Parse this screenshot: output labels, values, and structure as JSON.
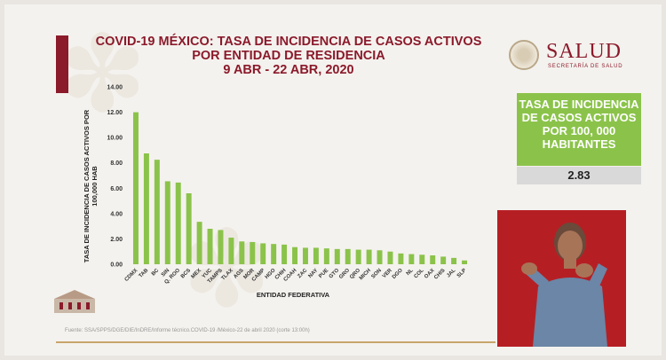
{
  "header": {
    "title_line1": "COVID-19 MÉXICO: TASA DE INCIDENCIA DE CASOS ACTIVOS",
    "title_line2": "POR ENTIDAD DE RESIDENCIA",
    "title_line3": "9 ABR - 22 ABR, 2020"
  },
  "logo": {
    "word": "SALUD",
    "subtitle": "SECRETARÍA DE SALUD"
  },
  "kpi": {
    "label": "TASA DE INCIDENCIA DE CASOS ACTIVOS POR 100, 000 HABITANTES",
    "value": "2.83"
  },
  "source": "Fuente: SSA/SPPS/DGE/DIE/InDRE/Informe técnico.COVID-19 /México-22 de abril 2020 (corte 13:00h)",
  "colors": {
    "bar": "#8bc34a",
    "title": "#8b1a2b",
    "kpi_bg": "#8bc34a"
  },
  "chart_data": {
    "type": "bar",
    "xlabel": "ENTIDAD FEDERATIVA",
    "ylabel": "TASA DE INCIDENCIA DE CASOS ACTIVOS POR 100,000 HAB",
    "ylim": [
      0,
      14
    ],
    "yticks": [
      "0.00",
      "2.00",
      "4.00",
      "6.00",
      "8.00",
      "10.00",
      "12.00",
      "14.00"
    ],
    "grid": false,
    "categories": [
      "CDMX",
      "TAB",
      "BC",
      "SIN",
      "Q. ROO",
      "BCS",
      "MEX",
      "YUC",
      "TAMPS",
      "TLAX",
      "AGS",
      "MOR",
      "CAMP",
      "HGO",
      "CHIH",
      "COAH",
      "ZAC",
      "NAY",
      "PUE",
      "GTO",
      "GRO",
      "QRO",
      "MICH",
      "SON",
      "VER",
      "DGO",
      "NL",
      "COL",
      "OAX",
      "CHIS",
      "JAL",
      "SLP"
    ],
    "values": [
      12.0,
      8.75,
      8.25,
      6.55,
      6.45,
      5.6,
      3.35,
      2.8,
      2.7,
      2.1,
      1.8,
      1.75,
      1.65,
      1.6,
      1.55,
      1.35,
      1.3,
      1.3,
      1.25,
      1.2,
      1.2,
      1.15,
      1.15,
      1.1,
      1.0,
      0.85,
      0.8,
      0.75,
      0.7,
      0.6,
      0.5,
      0.3
    ]
  }
}
